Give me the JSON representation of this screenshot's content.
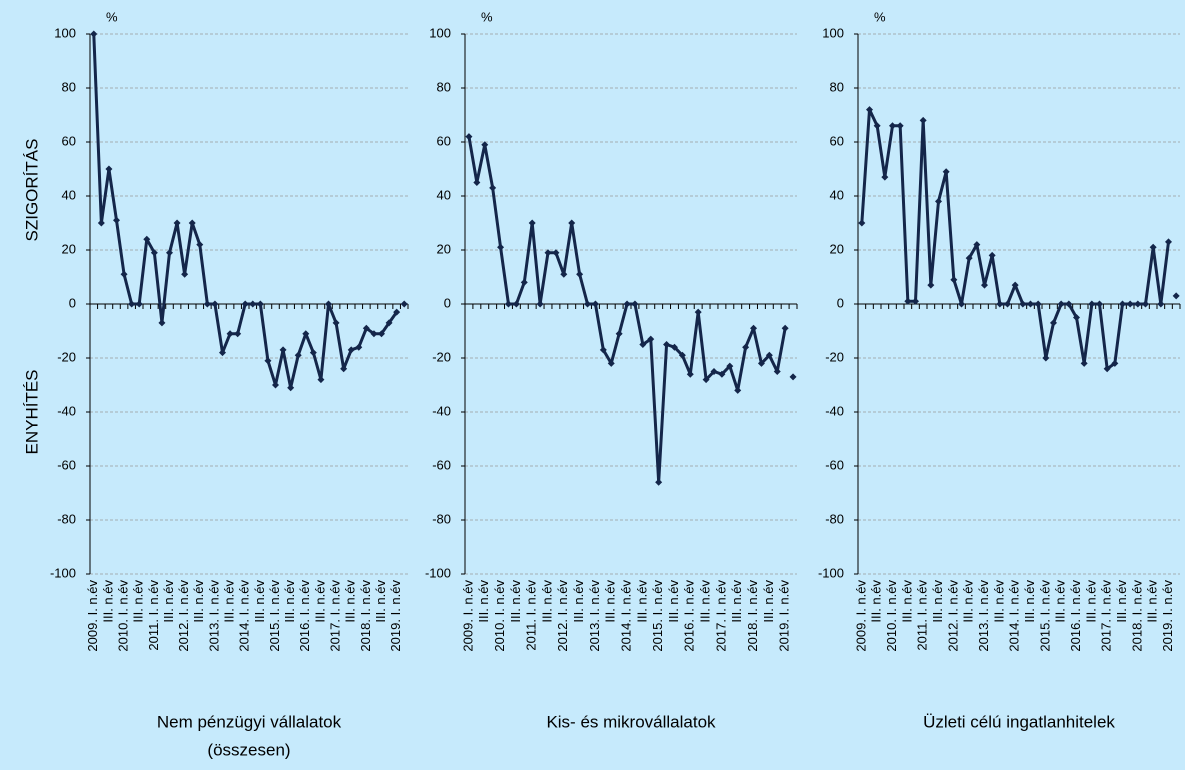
{
  "chart_data": [
    {
      "type": "line",
      "title": [
        "Nem pénzügyi vállalatok",
        "(összesen)"
      ],
      "unit": "%",
      "ylabel_top": "SZIGORÍTÁS",
      "ylabel_bottom": "ENYHÍTÉS",
      "categories": [
        "2009. I. n.év",
        null,
        "III. n.év",
        null,
        "2010. I. n.év",
        null,
        "III. n.év",
        null,
        "2011. I. n.év",
        null,
        "III. n.év",
        null,
        "2012. I. n.év",
        null,
        "III. n.év",
        null,
        "2013. I. n.év",
        null,
        "III. n.év",
        null,
        "2014. I. n.év",
        null,
        "III. n.év",
        null,
        "2015. I. n.év",
        null,
        "III. n.év",
        null,
        "2016. I. n.év",
        null,
        "III. n.év",
        null,
        "2017. I. n.év",
        null,
        "III. n.év",
        null,
        "2018. I. n.év",
        null,
        "III. n.év",
        null,
        "2019. I. n.év",
        null
      ],
      "series": [
        {
          "color": "#14264a",
          "values": [
            100,
            30,
            50,
            31,
            11,
            0,
            0,
            24,
            19,
            -7,
            19,
            30,
            11,
            30,
            22,
            0,
            0,
            -18,
            -11,
            -11,
            0,
            0,
            0,
            -21,
            -30,
            -17,
            -31,
            -19,
            -11,
            -18,
            -28,
            0,
            -7,
            -24,
            -17,
            -16,
            -9,
            -11,
            -11,
            -7,
            -3,
            null
          ]
        },
        {
          "color": "#14264a",
          "values": [
            null,
            null,
            null,
            null,
            null,
            null,
            null,
            null,
            null,
            null,
            null,
            null,
            null,
            null,
            null,
            null,
            null,
            null,
            null,
            null,
            null,
            null,
            null,
            null,
            null,
            null,
            null,
            null,
            null,
            null,
            null,
            null,
            null,
            null,
            null,
            null,
            null,
            null,
            null,
            null,
            null,
            0
          ]
        }
      ],
      "ylim": [
        -100,
        100
      ],
      "yticks": [
        -100,
        -80,
        -60,
        -40,
        -20,
        0,
        20,
        40,
        60,
        80,
        100
      ],
      "grid": true
    },
    {
      "type": "line",
      "title": [
        "Kis- és mikrovállalatok"
      ],
      "unit": "%",
      "categories": [
        "2009. I. n.év",
        null,
        "III. n.év",
        null,
        "2010. I. n.év",
        null,
        "III. n.év",
        null,
        "2011. I. n.év",
        null,
        "III. n.év",
        null,
        "2012. I. n.év",
        null,
        "III. n.év",
        null,
        "2013. I. n.év",
        null,
        "III. n.év",
        null,
        "2014. I. n.év",
        null,
        "III. n.év",
        null,
        "2015. I. n.év",
        null,
        "III. n.év",
        null,
        "2016. I. n.év",
        null,
        "III. n.év",
        null,
        "2017. I. n.év",
        null,
        "III. n.év",
        null,
        "2018. I. n.év",
        null,
        "III. n.év",
        null,
        "2019. I. n.év",
        null
      ],
      "series": [
        {
          "color": "#14264a",
          "values": [
            62,
            45,
            59,
            43,
            21,
            0,
            0,
            8,
            30,
            0,
            19,
            19,
            11,
            30,
            11,
            0,
            0,
            -17,
            -22,
            -11,
            0,
            0,
            -15,
            -13,
            -66,
            -15,
            -16,
            -19,
            -26,
            -3,
            -28,
            -25,
            -26,
            -23,
            -32,
            -16,
            -9,
            -22,
            -19,
            -25,
            -9,
            null
          ]
        },
        {
          "color": "#14264a",
          "values": [
            null,
            null,
            null,
            null,
            null,
            null,
            null,
            null,
            null,
            null,
            null,
            null,
            null,
            null,
            null,
            null,
            null,
            null,
            null,
            null,
            null,
            null,
            null,
            null,
            null,
            null,
            null,
            null,
            null,
            null,
            null,
            null,
            null,
            null,
            null,
            null,
            null,
            null,
            null,
            null,
            null,
            -27
          ]
        }
      ],
      "ylim": [
        -100,
        100
      ],
      "yticks": [
        -100,
        -80,
        -60,
        -40,
        -20,
        0,
        20,
        40,
        60,
        80,
        100
      ],
      "grid": true
    },
    {
      "type": "line",
      "title": [
        "Üzleti célú ingatlanhitelek"
      ],
      "unit": "%",
      "categories": [
        "2009. I. n.év",
        null,
        "III. n.év",
        null,
        "2010. I. n.év",
        null,
        "III. n.év",
        null,
        "2011. I. n.év",
        null,
        "III. n.év",
        null,
        "2012. I. n.év",
        null,
        "III. n.év",
        null,
        "2013. I. n.év",
        null,
        "III. n.év",
        null,
        "2014. I. n.év",
        null,
        "III. n.év",
        null,
        "2015. I. n.év",
        null,
        "III. n.év",
        null,
        "2016. I. n.év",
        null,
        "III. n.év",
        null,
        "2017. I. n.év",
        null,
        "III. n.év",
        null,
        "2018. I. n.év",
        null,
        "III. n.év",
        null,
        "2019. I. n.év",
        null
      ],
      "series": [
        {
          "color": "#14264a",
          "values": [
            30,
            72,
            66,
            47,
            66,
            66,
            1,
            1,
            68,
            7,
            38,
            49,
            9,
            0,
            17,
            22,
            7,
            18,
            0,
            0,
            7,
            0,
            0,
            0,
            -20,
            -7,
            0,
            0,
            -5,
            -22,
            0,
            0,
            -24,
            -22,
            0,
            0,
            0,
            0,
            21,
            0,
            23,
            null
          ]
        },
        {
          "color": "#14264a",
          "values": [
            null,
            null,
            null,
            null,
            null,
            null,
            null,
            null,
            null,
            null,
            null,
            null,
            null,
            null,
            null,
            null,
            null,
            null,
            null,
            null,
            null,
            null,
            null,
            null,
            null,
            null,
            null,
            null,
            null,
            null,
            null,
            null,
            null,
            null,
            null,
            null,
            null,
            null,
            null,
            null,
            null,
            3
          ]
        }
      ],
      "ylim": [
        -100,
        100
      ],
      "yticks": [
        -100,
        -80,
        -60,
        -40,
        -20,
        0,
        20,
        40,
        60,
        80,
        100
      ],
      "grid": true
    }
  ]
}
